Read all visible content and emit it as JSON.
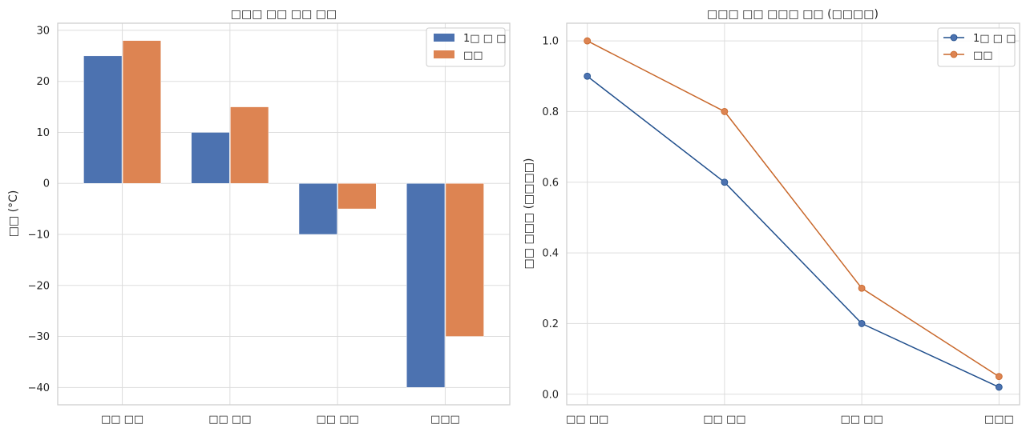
{
  "chart_data": [
    {
      "type": "bar",
      "title": "□□□ □□ □□ □□",
      "xlabel": "",
      "ylabel": "□□ (°C)",
      "categories": [
        "□□ □□",
        "□□ □□",
        "□□ □□",
        "□□□"
      ],
      "series": [
        {
          "name": "1□ □ □",
          "values": [
            25,
            10,
            -10,
            -40
          ],
          "color": "#4c72b0"
        },
        {
          "name": "□□",
          "values": [
            28,
            15,
            -5,
            -30
          ],
          "color": "#dd8452"
        }
      ],
      "ylim": [
        -43.4,
        31.4
      ],
      "yticks": [
        30,
        20,
        10,
        0,
        -10,
        -20,
        -30,
        -40
      ],
      "ytick_labels": [
        "30",
        "20",
        "10",
        "0",
        "−10",
        "−20",
        "−30",
        "−40"
      ],
      "grid": true,
      "legend": "top-right"
    },
    {
      "type": "line",
      "title": "□□□ □□ □□□ □□ (□□□□)",
      "xlabel": "",
      "ylabel": "□□ □□□ (□□□□)",
      "categories": [
        "□□ □□",
        "□□ □□",
        "□□ □□",
        "□□□"
      ],
      "series": [
        {
          "name": "1□ □ □",
          "values": [
            0.9,
            0.6,
            0.2,
            0.02
          ],
          "color": "#1f4e8c",
          "marker_color": "#4c72b0"
        },
        {
          "name": "□□",
          "values": [
            1.0,
            0.8,
            0.3,
            0.05
          ],
          "color": "#c8672a",
          "marker_color": "#dd8452"
        }
      ],
      "ylim": [
        -0.03,
        1.05
      ],
      "yticks": [
        0.0,
        0.2,
        0.4,
        0.6,
        0.8,
        1.0
      ],
      "ytick_labels": [
        "0.0",
        "0.2",
        "0.4",
        "0.6",
        "0.8",
        "1.0"
      ],
      "grid": true,
      "legend": "top-right"
    }
  ]
}
